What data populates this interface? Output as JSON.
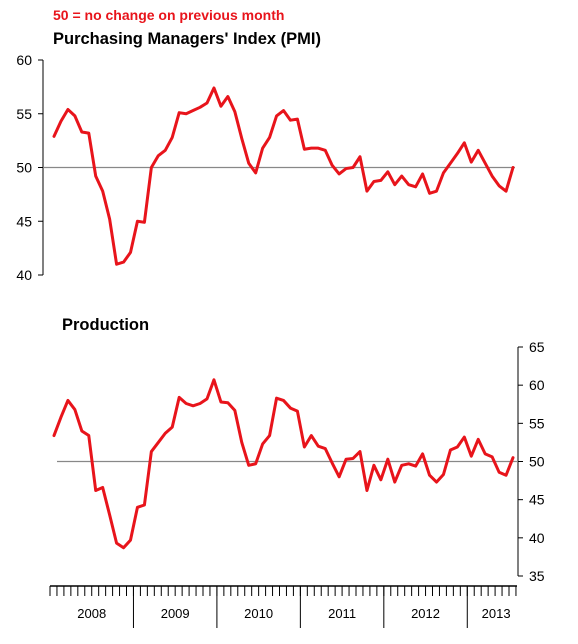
{
  "note": {
    "text": "50 =  no change on previous month",
    "color": "#e8141b"
  },
  "series_color": "#e8141b",
  "reference_line_color": "#888888",
  "chart_data": [
    {
      "type": "line",
      "title": "Purchasing Managers' Index (PMI)",
      "y_axis": "left",
      "ylim": [
        40,
        60
      ],
      "yticks": [
        "40",
        "45",
        "50",
        "55",
        "60"
      ],
      "reference_line": 50,
      "series": [
        {
          "values": [
            52.9,
            54.3,
            55.4,
            54.8,
            53.3,
            53.2,
            49.2,
            47.8,
            45.2,
            41.0,
            41.2,
            42.1,
            45.0,
            44.9,
            50.0,
            51.1,
            51.6,
            52.8,
            55.1,
            55.0,
            55.3,
            55.6,
            56.0,
            57.4,
            55.7,
            56.6,
            55.2,
            52.7,
            50.4,
            49.5,
            51.8,
            52.8,
            54.8,
            55.3,
            54.4,
            54.5,
            51.7,
            51.8,
            51.8,
            51.6,
            50.2,
            49.4,
            49.9,
            50.0,
            51.0,
            47.8,
            48.7,
            48.8,
            49.6,
            48.4,
            49.2,
            48.4,
            48.2,
            49.4,
            47.6,
            47.8,
            49.5,
            50.4,
            51.3,
            52.3,
            50.5,
            51.6,
            50.4,
            49.2,
            48.3,
            47.8,
            50.0
          ]
        }
      ]
    },
    {
      "type": "line",
      "title": "Production",
      "y_axis": "right",
      "ylim": [
        35,
        65
      ],
      "yticks": [
        "35",
        "40",
        "45",
        "50",
        "55",
        "60",
        "65"
      ],
      "reference_line": 50,
      "series": [
        {
          "values": [
            53.4,
            55.8,
            58.0,
            56.8,
            54.0,
            53.4,
            46.2,
            46.6,
            43.0,
            39.3,
            38.7,
            39.7,
            44.0,
            44.3,
            51.3,
            52.5,
            53.7,
            54.5,
            58.4,
            57.6,
            57.3,
            57.6,
            58.2,
            60.7,
            57.8,
            57.7,
            56.7,
            52.5,
            49.5,
            49.7,
            52.3,
            53.4,
            58.3,
            58.0,
            57.0,
            56.6,
            51.9,
            53.4,
            52.0,
            51.7,
            49.8,
            48.0,
            50.3,
            50.4,
            51.3,
            46.2,
            49.5,
            47.6,
            50.3,
            47.3,
            49.5,
            49.7,
            49.4,
            51.0,
            48.2,
            47.3,
            48.3,
            51.5,
            51.9,
            53.2,
            50.7,
            52.9,
            51.0,
            50.6,
            48.6,
            48.2,
            50.5
          ]
        }
      ]
    }
  ],
  "x_axis": {
    "years": [
      "2008",
      "2009",
      "2010",
      "2011",
      "2012",
      "2013"
    ],
    "start_year_month_index": 0,
    "months_per_year": 12,
    "final_year_months": 7
  }
}
